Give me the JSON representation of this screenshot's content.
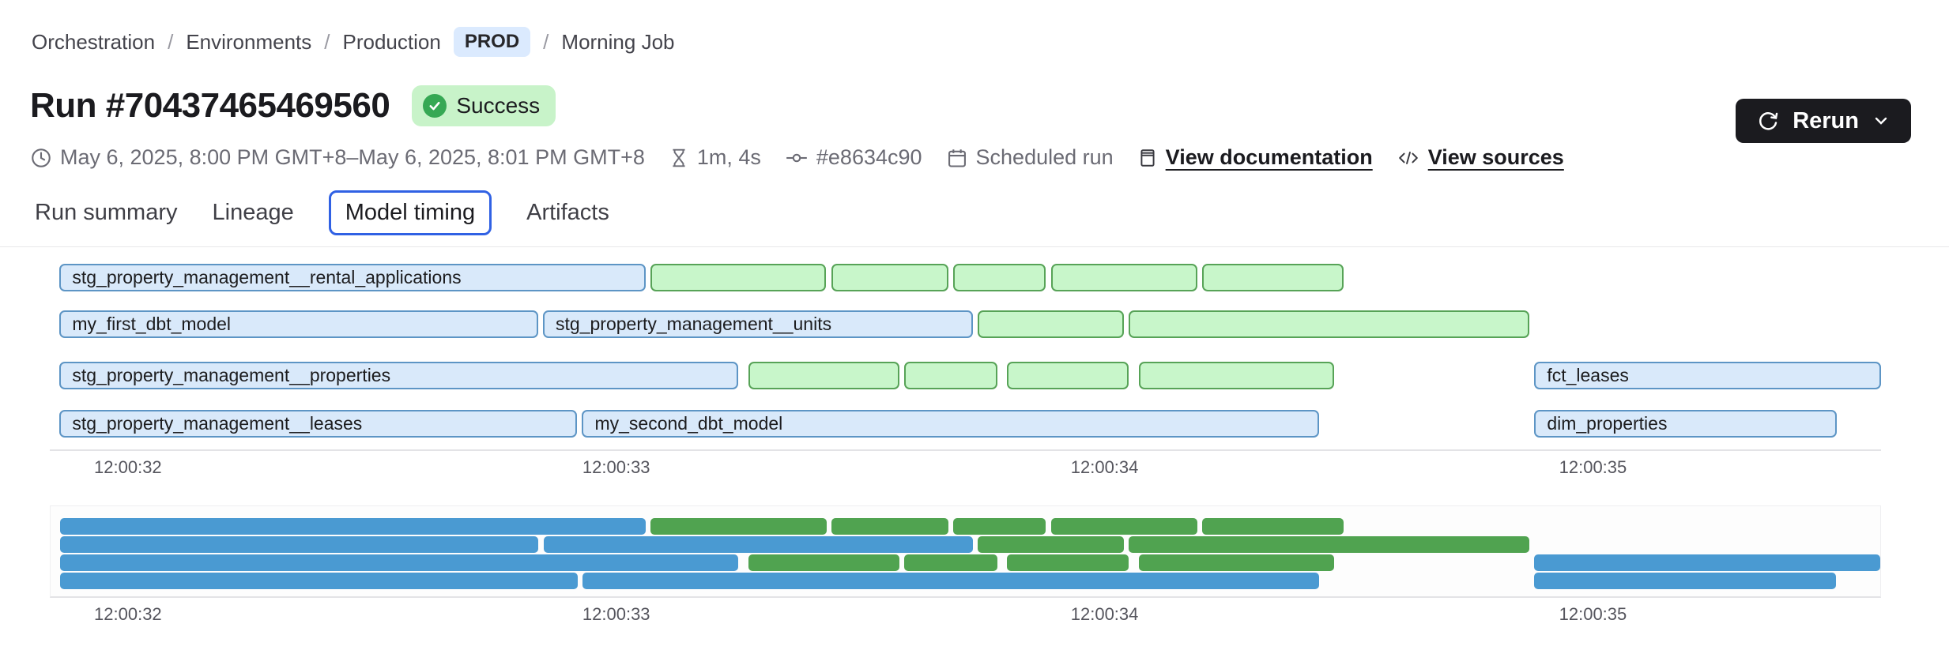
{
  "breadcrumb": {
    "separator": "/",
    "items": [
      "Orchestration",
      "Environments",
      "Production",
      "Morning Job"
    ],
    "env_badge": "PROD"
  },
  "header": {
    "title": "Run #70437465469560",
    "status": "Success"
  },
  "meta": {
    "time_range": "May 6, 2025, 8:00 PM GMT+8–May 6, 2025, 8:01 PM GMT+8",
    "duration": "1m, 4s",
    "commit": "#e8634c90",
    "trigger": "Scheduled run",
    "doc_link": "View documentation",
    "sources_link": "View sources"
  },
  "rerun": {
    "label": "Rerun"
  },
  "tabs": [
    {
      "label": "Run summary",
      "active": false
    },
    {
      "label": "Lineage",
      "active": false
    },
    {
      "label": "Model timing",
      "active": true
    },
    {
      "label": "Artifacts",
      "active": false
    }
  ],
  "chart_data": {
    "type": "gantt",
    "title": "Model timing",
    "colors": {
      "model_fill": "#d9e9fa",
      "model_border": "#5d95c5",
      "other_fill": "#c8f6ca",
      "other_border": "#57a357",
      "overview_model": "#4a9ad2",
      "overview_other": "#50a350"
    },
    "x_axis": {
      "t_min": 31.84,
      "t_max": 35.59,
      "ticks": [
        {
          "label": "12:00:32",
          "t": 32
        },
        {
          "label": "12:00:33",
          "t": 33
        },
        {
          "label": "12:00:34",
          "t": 34
        },
        {
          "label": "12:00:35",
          "t": 35
        }
      ]
    },
    "lanes": [
      {
        "bars": [
          {
            "label": "stg_property_management__rental_applications",
            "color": "blue",
            "start": 31.86,
            "end": 33.06
          },
          {
            "label": "",
            "color": "green",
            "start": 33.07,
            "end": 33.43
          },
          {
            "label": "",
            "color": "green",
            "start": 33.44,
            "end": 33.68
          },
          {
            "label": "",
            "color": "green",
            "start": 33.69,
            "end": 33.88
          },
          {
            "label": "",
            "color": "green",
            "start": 33.89,
            "end": 34.19
          },
          {
            "label": "",
            "color": "green",
            "start": 34.2,
            "end": 34.49
          }
        ]
      },
      {
        "bars": [
          {
            "label": "my_first_dbt_model",
            "color": "blue",
            "start": 31.86,
            "end": 32.84
          },
          {
            "label": "stg_property_management__units",
            "color": "blue",
            "start": 32.85,
            "end": 33.73
          },
          {
            "label": "",
            "color": "green",
            "start": 33.74,
            "end": 34.04
          },
          {
            "label": "",
            "color": "green",
            "start": 34.05,
            "end": 34.87
          }
        ]
      },
      {
        "bars": [
          {
            "label": "stg_property_management__properties",
            "color": "blue",
            "start": 31.86,
            "end": 33.25
          },
          {
            "label": "",
            "color": "green",
            "start": 33.27,
            "end": 33.58
          },
          {
            "label": "",
            "color": "green",
            "start": 33.59,
            "end": 33.78
          },
          {
            "label": "",
            "color": "green",
            "start": 33.8,
            "end": 34.05
          },
          {
            "label": "",
            "color": "green",
            "start": 34.07,
            "end": 34.47
          },
          {
            "label": "fct_leases",
            "color": "blue",
            "start": 34.88,
            "end": 35.59
          }
        ]
      },
      {
        "bars": [
          {
            "label": "stg_property_management__leases",
            "color": "blue",
            "start": 31.86,
            "end": 32.92
          },
          {
            "label": "my_second_dbt_model",
            "color": "blue",
            "start": 32.93,
            "end": 34.44
          },
          {
            "label": "dim_properties",
            "color": "blue",
            "start": 34.88,
            "end": 35.5
          }
        ]
      }
    ]
  }
}
